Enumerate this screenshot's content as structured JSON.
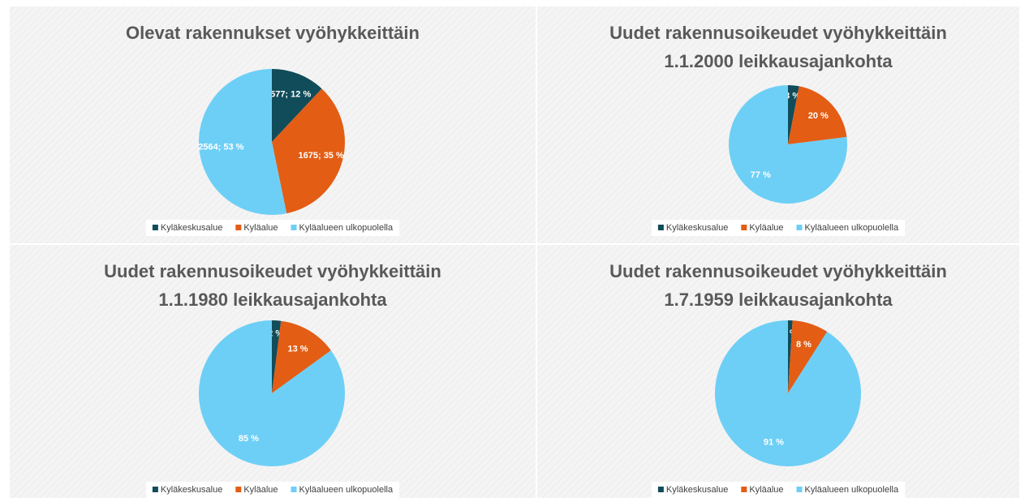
{
  "chart_data": [
    {
      "type": "pie",
      "title": [
        "Olevat rakennukset vyöhykkeittäin"
      ],
      "categories": [
        "Kyläkeskusalue",
        "Kyläalue",
        "Kyläalueen ulkopuolella"
      ],
      "values": [
        577,
        1675,
        2564
      ],
      "value_labels": [
        "577; 12 %",
        "1675; 35 %",
        "2564; 53 %"
      ],
      "colors": [
        "#114c5a",
        "#e35d14",
        "#6dcff6"
      ],
      "legend": "bottom"
    },
    {
      "type": "pie",
      "title": [
        "Uudet rakennusoikeudet vyöhykkeittäin",
        "1.1.2000 leikkausajankohta"
      ],
      "categories": [
        "Kyläkeskusalue",
        "Kyläalue",
        "Kyläalueen ulkopuolella"
      ],
      "values": [
        3,
        20,
        77
      ],
      "value_labels": [
        "3 %",
        "20 %",
        "77 %"
      ],
      "colors": [
        "#114c5a",
        "#e35d14",
        "#6dcff6"
      ],
      "legend": "bottom"
    },
    {
      "type": "pie",
      "title": [
        "Uudet rakennusoikeudet vyöhykkeittäin",
        "1.1.1980 leikkausajankohta"
      ],
      "categories": [
        "Kyläkeskusalue",
        "Kyläalue",
        "Kyläalueen ulkopuolella"
      ],
      "values": [
        2,
        13,
        85
      ],
      "value_labels": [
        "2 %",
        "13 %",
        "85 %"
      ],
      "colors": [
        "#114c5a",
        "#e35d14",
        "#6dcff6"
      ],
      "legend": "bottom"
    },
    {
      "type": "pie",
      "title": [
        "Uudet rakennusoikeudet vyöhykkeittäin",
        "1.7.1959 leikkausajankohta"
      ],
      "categories": [
        "Kyläkeskusalue",
        "Kyläalue",
        "Kyläalueen ulkopuolella"
      ],
      "values": [
        1,
        8,
        91
      ],
      "value_labels": [
        "1 %",
        "8 %",
        "91 %"
      ],
      "colors": [
        "#114c5a",
        "#e35d14",
        "#6dcff6"
      ],
      "legend": "bottom"
    }
  ]
}
